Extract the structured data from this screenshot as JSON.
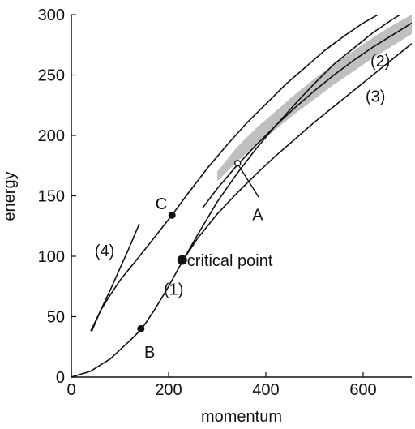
{
  "chart_data": {
    "type": "line",
    "xlabel": "momentum",
    "ylabel": "energy",
    "xlim": [
      0,
      700
    ],
    "ylim": [
      0,
      300
    ],
    "xticks": [
      0,
      200,
      400,
      600
    ],
    "yticks": [
      0,
      50,
      100,
      150,
      200,
      250,
      300
    ],
    "grid": false,
    "series": [
      {
        "name": "(1)",
        "x": [
          0,
          40,
          80,
          120,
          145,
          170,
          200,
          230,
          260,
          300,
          340,
          380,
          420,
          460,
          500,
          540,
          580,
          620,
          660,
          700
        ],
        "y": [
          0,
          5,
          15,
          30,
          40,
          55,
          75,
          97,
          118,
          145,
          168,
          189,
          208,
          226,
          243,
          259,
          272,
          285,
          296,
          306
        ]
      },
      {
        "name": "(2)",
        "x": [
          270,
          300,
          340,
          380,
          420,
          460,
          500,
          540,
          580,
          620,
          660,
          700
        ],
        "y": [
          140,
          156,
          175,
          192,
          208,
          223,
          237,
          250,
          262,
          273,
          283,
          293
        ]
      },
      {
        "name": "(3)",
        "x": [
          230,
          260,
          300,
          340,
          380,
          420,
          460,
          500,
          540,
          580,
          620,
          660,
          700
        ],
        "y": [
          97,
          115,
          135,
          152,
          168,
          183,
          197,
          211,
          224,
          237,
          250,
          263,
          276
        ]
      },
      {
        "name": "(4)",
        "x": [
          40,
          60,
          80,
          100,
          120,
          140
        ],
        "y": [
          38,
          55,
          72,
          90,
          108,
          127
        ]
      },
      {
        "name": "C",
        "x": [
          42,
          60,
          80,
          100,
          130,
          160,
          205,
          240,
          280,
          320,
          360,
          400,
          440,
          480,
          520,
          560,
          600,
          640,
          680
        ],
        "y": [
          38,
          55,
          68,
          80,
          95,
          110,
          133,
          152,
          173,
          192,
          210,
          226,
          242,
          256,
          270,
          282,
          293,
          302,
          310
        ]
      }
    ],
    "band": {
      "x": [
        300,
        340,
        380,
        420,
        460,
        500,
        540,
        580,
        620,
        660,
        700
      ],
      "upper": [
        170,
        190,
        206,
        220,
        234,
        247,
        259,
        270,
        281,
        291,
        300
      ],
      "lower": [
        162,
        178,
        192,
        205,
        218,
        230,
        242,
        253,
        264,
        274,
        284
      ]
    },
    "points": [
      {
        "label": "B",
        "x": 143,
        "y": 40
      },
      {
        "label": "C",
        "x": 207,
        "y": 134
      },
      {
        "label": "critical point",
        "x": 228,
        "y": 97
      },
      {
        "label": "A",
        "x": 342,
        "y": 177
      }
    ],
    "annotations": [
      {
        "text": "(1)",
        "x": 190,
        "y": 68
      },
      {
        "text": "(2)",
        "x": 615,
        "y": 257
      },
      {
        "text": "(3)",
        "x": 605,
        "y": 228
      },
      {
        "text": "(4)",
        "x": 48,
        "y": 100
      },
      {
        "text": "A",
        "x": 372,
        "y": 130
      },
      {
        "text": "B",
        "x": 150,
        "y": 16
      },
      {
        "text": "C",
        "x": 173,
        "y": 139
      },
      {
        "text": "critical point",
        "x": 238,
        "y": 92
      }
    ],
    "colors": {
      "line": "#111111",
      "band": "#8a8a8a"
    }
  }
}
